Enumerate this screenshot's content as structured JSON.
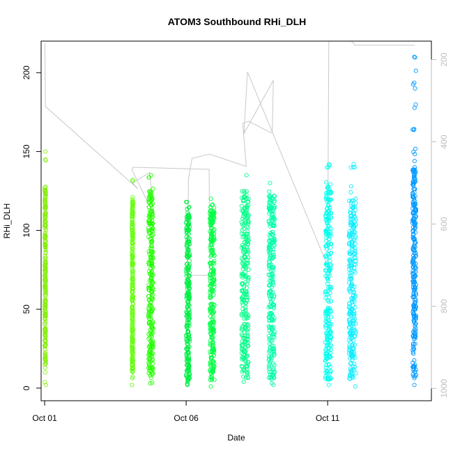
{
  "chart_data": {
    "type": "scatter",
    "title": "ATOM3 Southbound RHi_DLH",
    "xlabel": "Date",
    "ylabel": "RHi_DLH",
    "x_axis": {
      "type": "date",
      "range": [
        "2017-09-30T21:00",
        "2017-10-14T16:00"
      ],
      "ticks": [
        {
          "value": "2017-10-01",
          "label": "Oct 01"
        },
        {
          "value": "2017-10-06",
          "label": "Oct 06"
        },
        {
          "value": "2017-10-11",
          "label": "Oct 11"
        }
      ]
    },
    "y_axis": {
      "range": [
        -8,
        220
      ],
      "ticks": [
        0,
        50,
        100,
        150,
        200
      ]
    },
    "y2_axis": {
      "reversed": true,
      "range": [
        1030,
        155
      ],
      "ticks": [
        200,
        400,
        600,
        800,
        1000
      ],
      "color": "#bdbdbd",
      "meaning": "pressure shown by grey trace"
    },
    "grid": false,
    "legend": "none",
    "series": [
      {
        "start": "2017-10-01T00:00",
        "end": "2017-10-01T01:00",
        "y_min": 2,
        "y_max": 150,
        "y_core": [
          15,
          128
        ],
        "color": "#88ee11"
      },
      {
        "start": "2017-10-04T02:00",
        "end": "2017-10-04T03:00",
        "y_min": 2,
        "y_max": 132,
        "y_core": [
          10,
          120
        ],
        "color": "#66ff11"
      },
      {
        "start": "2017-10-04T16:00",
        "end": "2017-10-04T20:00",
        "y_min": 3,
        "y_max": 135,
        "y_core": [
          8,
          125
        ],
        "color": "#22ff00"
      },
      {
        "start": "2017-10-06T00:00",
        "end": "2017-10-06T03:00",
        "y_min": 2,
        "y_max": 118,
        "y_core": [
          5,
          110
        ],
        "color": "#00ee44"
      },
      {
        "start": "2017-10-06T20:00",
        "end": "2017-10-07T00:00",
        "y_min": 1,
        "y_max": 120,
        "y_core": [
          5,
          115
        ],
        "color": "#00ff44"
      },
      {
        "start": "2017-10-07T23:00",
        "end": "2017-10-08T05:00",
        "y_min": 4,
        "y_max": 135,
        "y_core": [
          6,
          125
        ],
        "color": "#00ff88"
      },
      {
        "start": "2017-10-08T22:00",
        "end": "2017-10-09T03:00",
        "y_min": 2,
        "y_max": 130,
        "y_core": [
          6,
          122
        ],
        "color": "#00ffaa"
      },
      {
        "start": "2017-10-10T22:00",
        "end": "2017-10-11T03:00",
        "y_min": 2,
        "y_max": 142,
        "y_core": [
          5,
          128
        ],
        "color": "#00ffee"
      },
      {
        "start": "2017-10-11T18:00",
        "end": "2017-10-12T00:00",
        "y_min": 1,
        "y_max": 142,
        "y_core": [
          5,
          120
        ],
        "color": "#11eeff"
      },
      {
        "start": "2017-10-14T00:00",
        "end": "2017-10-14T03:00",
        "y_min": 2,
        "y_max": 210,
        "y_core": [
          5,
          140
        ],
        "color": "#0099ff"
      }
    ],
    "pressure_trace": {
      "color": "#c8c8c8",
      "x": [
        "2017-10-01T00:10",
        "2017-10-01T00:40",
        "2017-10-04T07:00",
        "2017-10-04T02:30",
        "2017-10-04T17:00",
        "2017-10-04T21:00",
        "2017-10-04T02:00",
        "2017-10-04T03:00",
        "2017-10-06T19:30",
        "2017-10-06T20:00",
        "2017-10-06T01:00",
        "2017-10-06T02:00",
        "2017-10-06T05:00",
        "2017-10-06T20:00",
        "2017-10-08T03:00",
        "2017-10-08T00:00",
        "2017-10-08T05:00",
        "2017-10-09T00:00",
        "2017-10-09T01:00",
        "2017-10-09T02:00",
        "2017-10-08T01:00",
        "2017-10-08T04:00",
        "2017-10-11T04:00",
        "2017-10-11T00:00",
        "2017-10-11T01:00",
        "2017-10-11T02:00",
        "2017-10-11T18:00",
        "2017-10-11T20:00",
        "2017-10-11T22:00",
        "2017-10-11T23:00",
        "2017-10-14T00:00",
        "2017-10-14T01:00",
        "2017-10-14T02:00"
      ],
      "y": [
        160,
        314,
        514,
        500,
        475,
        580,
        468,
        462,
        467,
        725,
        725,
        490,
        440,
        430,
        460,
        355,
        350,
        378,
        378,
        250,
        380,
        230,
        730,
        700,
        155,
        155,
        155,
        155,
        160,
        165,
        165,
        165,
        165
      ]
    }
  }
}
